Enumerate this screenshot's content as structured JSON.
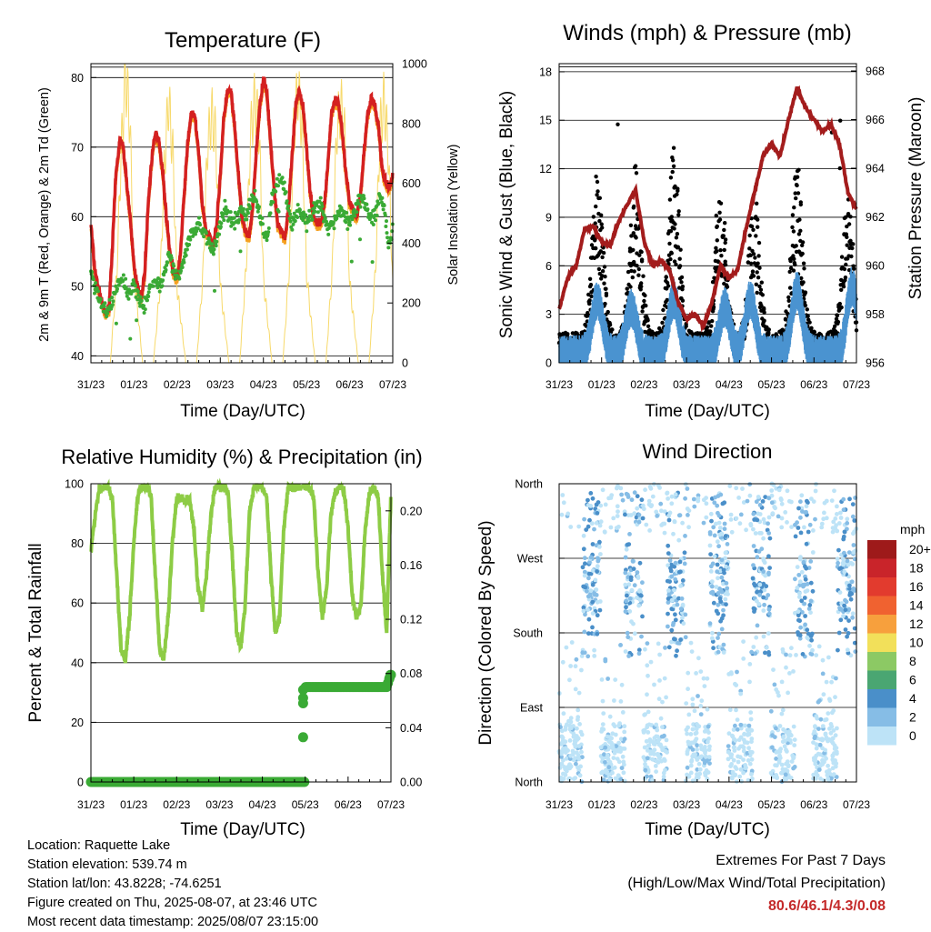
{
  "x_ticks": [
    "31/23",
    "01/23",
    "02/23",
    "03/23",
    "04/23",
    "05/23",
    "06/23",
    "07/23"
  ],
  "colors": {
    "temp_2m": "#d42020",
    "temp_9m": "#f5a020",
    "dewpoint": "#3aaa35",
    "solar": "#f7d96a",
    "wind": "#4a93d0",
    "gust": "#000000",
    "pressure": "#a31c1c",
    "rh": "#8dcc45",
    "precip": "#3aaa35"
  },
  "info": {
    "location": "Location: Raquette Lake",
    "elevation": "Station elevation: 539.74 m",
    "latlon": "Station lat/lon: 43.8228; -74.6251",
    "created": "Figure created on Thu, 2025-08-07, at 23:46 UTC",
    "timestamp": "Most recent data timestamp: 2025/08/07 23:15:00"
  },
  "extremes": {
    "title": "Extremes For Past 7 Days",
    "subtitle": "(High/Low/Max Wind/Total Precipitation)",
    "values": "80.6/46.1/4.3/0.08"
  },
  "chart_data": [
    {
      "type": "line",
      "title": "Temperature (F)",
      "xlabel": "Time (Day/UTC)",
      "ylabel": "2m & 9m T (Red, Orange) & 2m Td (Green)",
      "y2label": "Solar Insolation (Yellow)",
      "ylim": [
        39,
        82
      ],
      "y2lim": [
        0,
        1000
      ],
      "yticks": [
        40,
        50,
        60,
        70,
        80
      ],
      "y2ticks": [
        0,
        200,
        400,
        600,
        800,
        1000
      ],
      "x_days": [
        0,
        7
      ],
      "series": [
        {
          "key": "temp",
          "x": [
            0,
            0.08,
            0.16,
            0.25,
            0.33,
            0.42,
            0.5,
            0.58,
            0.67,
            0.75,
            0.83,
            0.92,
            1,
            1.08,
            1.16,
            1.25,
            1.33,
            1.42,
            1.5,
            1.58,
            1.67,
            1.75,
            1.83,
            1.92,
            2,
            2.08,
            2.16,
            2.25,
            2.33,
            2.42,
            2.5,
            2.58,
            2.67,
            2.75,
            2.83,
            2.92,
            3,
            3.08,
            3.16,
            3.25,
            3.33,
            3.42,
            3.5,
            3.58,
            3.67,
            3.75,
            3.83,
            3.92,
            4,
            4.08,
            4.16,
            4.25,
            4.33,
            4.42,
            4.5,
            4.58,
            4.67,
            4.75,
            4.83,
            4.92,
            5,
            5.08,
            5.16,
            5.25,
            5.33,
            5.42,
            5.5,
            5.58,
            5.67,
            5.75,
            5.83,
            5.92,
            6,
            6.08,
            6.16,
            6.25,
            6.33,
            6.42,
            6.5,
            6.58,
            6.67,
            6.75,
            6.83,
            6.92,
            7
          ],
          "values": [
            59,
            53,
            50,
            48,
            46,
            47,
            56,
            66,
            71,
            70,
            65,
            59,
            53,
            50,
            48,
            52,
            62,
            69,
            72,
            71,
            66,
            60,
            55,
            52,
            51,
            55,
            63,
            71,
            75,
            74,
            69,
            62,
            58,
            57,
            56,
            59,
            66,
            74,
            78,
            78,
            73,
            66,
            60,
            58,
            57,
            61,
            69,
            76,
            80,
            78,
            71,
            64,
            59,
            58,
            57,
            61,
            69,
            76,
            78,
            76,
            70,
            64,
            60,
            59,
            59,
            62,
            68,
            75,
            77,
            76,
            72,
            66,
            62,
            61,
            60,
            63,
            69,
            75,
            77,
            76,
            73,
            67,
            65,
            64,
            66
          ]
        },
        {
          "key": "dew",
          "x": [
            0,
            0.1,
            0.2,
            0.3,
            0.4,
            0.5,
            0.6,
            0.7,
            0.8,
            0.9,
            1,
            1.1,
            1.2,
            1.3,
            1.4,
            1.5,
            1.6,
            1.7,
            1.8,
            1.9,
            2,
            2.1,
            2.2,
            2.3,
            2.4,
            2.5,
            2.6,
            2.7,
            2.8,
            2.9,
            3,
            3.1,
            3.2,
            3.3,
            3.4,
            3.5,
            3.6,
            3.7,
            3.8,
            3.9,
            4,
            4.1,
            4.2,
            4.3,
            4.4,
            4.5,
            4.6,
            4.7,
            4.8,
            4.9,
            5,
            5.1,
            5.2,
            5.3,
            5.4,
            5.5,
            5.6,
            5.7,
            5.8,
            5.9,
            6,
            6.1,
            6.2,
            6.3,
            6.4,
            6.5,
            6.6,
            6.7,
            6.8,
            6.9,
            7
          ],
          "values": [
            52,
            50,
            48,
            47,
            46,
            48,
            50,
            51,
            50,
            49,
            50,
            49,
            47,
            48,
            50,
            51,
            50,
            52,
            55,
            53,
            51,
            52,
            55,
            57,
            58,
            59,
            58,
            57,
            55,
            56,
            59,
            61,
            60,
            59,
            60,
            61,
            60,
            62,
            63,
            61,
            58,
            57,
            63,
            64,
            66,
            64,
            60,
            59,
            61,
            60,
            59,
            60,
            61,
            62,
            60,
            58,
            59,
            60,
            61,
            60,
            59,
            61,
            62,
            63,
            61,
            60,
            60,
            63,
            61,
            56,
            58
          ]
        },
        {
          "key": "solar",
          "x": [
            0,
            0.3,
            0.45,
            0.6,
            0.7,
            0.8,
            0.9,
            1.0,
            1.2,
            1.45,
            1.6,
            1.7,
            1.8,
            1.9,
            2.0,
            2.2,
            2.45,
            2.6,
            2.7,
            2.8,
            2.9,
            3.0,
            3.2,
            3.45,
            3.6,
            3.7,
            3.8,
            3.9,
            4.0,
            4.2,
            4.45,
            4.6,
            4.7,
            4.8,
            4.9,
            5.0,
            5.2,
            5.45,
            5.6,
            5.7,
            5.8,
            5.9,
            6.0,
            6.2,
            6.45,
            6.6,
            6.7,
            6.8,
            6.9,
            7.0
          ],
          "values": [
            0,
            0,
            0,
            300,
            700,
            960,
            820,
            300,
            0,
            0,
            250,
            650,
            880,
            700,
            250,
            0,
            0,
            300,
            720,
            830,
            750,
            260,
            0,
            0,
            320,
            760,
            880,
            780,
            280,
            0,
            0,
            320,
            770,
            920,
            780,
            300,
            0,
            0,
            320,
            780,
            860,
            740,
            270,
            0,
            0,
            310,
            770,
            880,
            700,
            250
          ]
        }
      ]
    },
    {
      "type": "scatter",
      "title": "Winds (mph) & Pressure (mb)",
      "xlabel": "Time (Day/UTC)",
      "ylabel": "Sonic Wind & Gust (Blue, Black)",
      "y2label": "Station Pressure (Maroon)",
      "ylim": [
        0,
        18.5
      ],
      "y2lim": [
        956,
        968.3
      ],
      "yticks": [
        0,
        3,
        6,
        9,
        12,
        15,
        18
      ],
      "y2ticks": [
        956,
        958,
        960,
        962,
        964,
        966,
        968
      ],
      "series": [
        {
          "key": "pressure",
          "x": [
            0,
            0.2,
            0.4,
            0.6,
            0.8,
            1.0,
            1.2,
            1.4,
            1.6,
            1.8,
            2.0,
            2.2,
            2.4,
            2.6,
            2.8,
            3.0,
            3.2,
            3.4,
            3.6,
            3.8,
            4.0,
            4.2,
            4.4,
            4.6,
            4.8,
            5.0,
            5.2,
            5.4,
            5.6,
            5.8,
            6.0,
            6.2,
            6.4,
            6.6,
            6.8,
            7.0
          ],
          "values": [
            958.2,
            959.5,
            960,
            961.5,
            961.6,
            961,
            960.8,
            961.8,
            962.5,
            963.1,
            961,
            960,
            960.2,
            959.8,
            958.5,
            957.8,
            958,
            957.5,
            958.5,
            960,
            959.5,
            959.8,
            961.5,
            963,
            964.5,
            965,
            964.5,
            966,
            967.3,
            966.5,
            966,
            965.5,
            965.8,
            965,
            963,
            962.3
          ]
        },
        {
          "key": "wind_peaks",
          "x": [
            0.9,
            1.7,
            2.7,
            3.9,
            4.5,
            5.6,
            6.9
          ],
          "values": [
            3.5,
            3,
            3.5,
            3,
            3.5,
            4,
            4.3
          ]
        },
        {
          "key": "gust_peaks",
          "x": [
            0.9,
            1.8,
            2.7,
            3.8,
            4.6,
            5.6,
            6.8
          ],
          "values": [
            8,
            8.5,
            9.5,
            8,
            7,
            8.5,
            7
          ]
        }
      ]
    },
    {
      "type": "line",
      "title": "Relative Humidity (%) & Precipitation (in)",
      "xlabel": "Time (Day/UTC)",
      "ylabel": "Percent & Total Rainfall",
      "ylim": [
        0,
        100
      ],
      "y2lim": [
        0,
        0.22
      ],
      "yticks": [
        0,
        20,
        40,
        60,
        80,
        100
      ],
      "y2ticks": [
        0.0,
        0.04,
        0.08,
        0.12,
        0.16,
        0.2
      ],
      "series": [
        {
          "key": "rh",
          "x": [
            0,
            0.1,
            0.2,
            0.3,
            0.4,
            0.5,
            0.6,
            0.7,
            0.8,
            0.9,
            1,
            1.1,
            1.2,
            1.3,
            1.4,
            1.5,
            1.6,
            1.7,
            1.8,
            1.9,
            2,
            2.1,
            2.2,
            2.3,
            2.4,
            2.5,
            2.6,
            2.7,
            2.8,
            2.9,
            3,
            3.1,
            3.2,
            3.3,
            3.4,
            3.5,
            3.6,
            3.7,
            3.8,
            3.9,
            4,
            4.1,
            4.2,
            4.3,
            4.4,
            4.5,
            4.6,
            4.7,
            4.8,
            4.9,
            5,
            5.1,
            5.2,
            5.3,
            5.4,
            5.5,
            5.6,
            5.7,
            5.8,
            5.9,
            6,
            6.1,
            6.2,
            6.3,
            6.4,
            6.5,
            6.6,
            6.7,
            6.8,
            6.9,
            7
          ],
          "values": [
            77,
            90,
            98,
            99,
            99,
            95,
            70,
            45,
            40,
            55,
            80,
            97,
            99,
            99,
            96,
            70,
            45,
            41,
            55,
            80,
            95,
            95,
            94,
            95,
            85,
            65,
            58,
            70,
            90,
            99,
            99,
            99,
            97,
            75,
            50,
            45,
            60,
            90,
            99,
            99,
            99,
            95,
            70,
            50,
            55,
            85,
            99,
            99,
            99,
            99,
            99,
            99,
            95,
            70,
            55,
            65,
            90,
            97,
            99,
            98,
            85,
            62,
            55,
            60,
            85,
            97,
            99,
            96,
            70,
            50,
            97
          ]
        },
        {
          "key": "precip",
          "x": [
            0,
            4.8,
            5.0,
            5.1,
            5.2,
            6.0,
            6.9,
            7.0
          ],
          "values": [
            0,
            0,
            0.07,
            0.07,
            0.07,
            0.07,
            0.07,
            0.08
          ]
        }
      ]
    },
    {
      "type": "scatter",
      "title": "Wind Direction",
      "xlabel": "Time (Day/UTC)",
      "ylabel": "Direction (Colored By Speed)",
      "y_categories": [
        "North",
        "East",
        "South",
        "West",
        "North"
      ],
      "ylim": [
        0,
        360
      ],
      "legend": {
        "title": "mph",
        "labels": [
          "20+",
          "18",
          "16",
          "14",
          "12",
          "10",
          "8",
          "6",
          "4",
          "2",
          "0"
        ],
        "colors": [
          "#9e1a1a",
          "#c9242a",
          "#e23b2e",
          "#f06230",
          "#f7a03d",
          "#f2e05a",
          "#8cc964",
          "#4aa672",
          "#4a8fc9",
          "#86bde6",
          "#bde3f7"
        ]
      }
    }
  ]
}
